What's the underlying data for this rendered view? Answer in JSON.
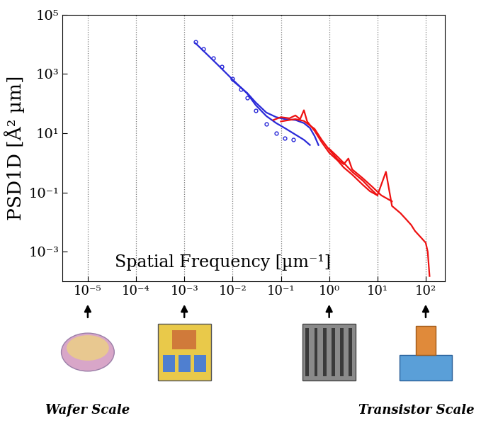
{
  "chart_data": {
    "type": "line",
    "x_label": "Spatial Frequency [µm⁻¹]",
    "y_label": "PSD1D [Å² µm]",
    "log": true,
    "grid": "x",
    "xlim": [
      3e-06,
      250
    ],
    "ylim": [
      0.0001,
      100000
    ],
    "xticks": [
      {
        "value": 1e-05,
        "label": "10⁻⁵"
      },
      {
        "value": 0.0001,
        "label": "10⁻⁴"
      },
      {
        "value": 0.001,
        "label": "10⁻³"
      },
      {
        "value": 0.01,
        "label": "10⁻²"
      },
      {
        "value": 0.1,
        "label": "10⁻¹"
      },
      {
        "value": 1,
        "label": "10⁰"
      },
      {
        "value": 10,
        "label": "10¹"
      },
      {
        "value": 100,
        "label": "10²"
      }
    ],
    "yticks": [
      {
        "value": 0.001,
        "label": "10⁻³"
      },
      {
        "value": 0.1,
        "label": "10⁻¹"
      },
      {
        "value": 10,
        "label": "10¹"
      },
      {
        "value": 1000,
        "label": "10³"
      },
      {
        "value": 100000,
        "label": "10⁵"
      }
    ],
    "series": [
      {
        "color": "#2a2ad8",
        "marker": "circle",
        "line_style": "none",
        "x": [
          0.0017,
          0.0025,
          0.004,
          0.006,
          0.01,
          0.015,
          0.02,
          0.03,
          0.05,
          0.08,
          0.12,
          0.18
        ],
        "values": [
          12000,
          7000,
          3500,
          1800,
          700,
          300,
          160,
          60,
          20,
          10,
          7,
          6
        ]
      },
      {
        "color": "#2a2ad8",
        "line_style": "solid",
        "x": [
          0.0017,
          0.003,
          0.005,
          0.01,
          0.02,
          0.03,
          0.05,
          0.08,
          0.12,
          0.2,
          0.3,
          0.4
        ],
        "values": [
          11000,
          4500,
          2000,
          650,
          220,
          90,
          38,
          22,
          15,
          9,
          6,
          4
        ]
      },
      {
        "color": "#2a2ad8",
        "line_style": "solid",
        "x": [
          0.01,
          0.02,
          0.03,
          0.05,
          0.08,
          0.12,
          0.2,
          0.3,
          0.4,
          0.5,
          0.6
        ],
        "values": [
          600,
          230,
          110,
          50,
          35,
          30,
          28,
          22,
          15,
          8,
          4
        ]
      },
      {
        "color": "#ee1111",
        "line_style": "solid",
        "x": [
          0.07,
          0.1,
          0.15,
          0.2,
          0.25,
          0.3,
          0.35,
          0.5,
          0.7,
          1,
          1.5,
          2,
          3,
          5,
          7,
          10
        ],
        "values": [
          28,
          35,
          32,
          40,
          30,
          60,
          25,
          12,
          5,
          2.2,
          1.2,
          0.7,
          0.4,
          0.18,
          0.11,
          0.08
        ]
      },
      {
        "color": "#ee1111",
        "line_style": "solid",
        "x": [
          0.1,
          0.15,
          0.2,
          0.3,
          0.5,
          0.7,
          1,
          1.5,
          2,
          2.5,
          3,
          5,
          8,
          12,
          20
        ],
        "values": [
          25,
          28,
          30,
          26,
          14,
          6,
          2.8,
          1.3,
          0.9,
          1.4,
          0.6,
          0.3,
          0.15,
          0.08,
          0.05
        ]
      },
      {
        "color": "#ee1111",
        "line_style": "solid",
        "x": [
          1,
          1.5,
          2,
          3,
          5,
          7,
          10,
          15,
          20,
          30,
          40,
          50,
          60,
          80,
          100,
          110,
          120
        ],
        "values": [
          3,
          1.6,
          1.0,
          0.5,
          0.25,
          0.14,
          0.08,
          0.5,
          0.035,
          0.02,
          0.012,
          0.008,
          0.005,
          0.003,
          0.002,
          0.001,
          0.00015
        ]
      }
    ],
    "scale_arrows": [
      1e-05,
      0.001,
      1,
      100
    ],
    "annotations": [
      {
        "x": 1e-05,
        "text": "Wafer Scale"
      },
      {
        "x": 100,
        "text": "Transistor Scale"
      }
    ]
  }
}
